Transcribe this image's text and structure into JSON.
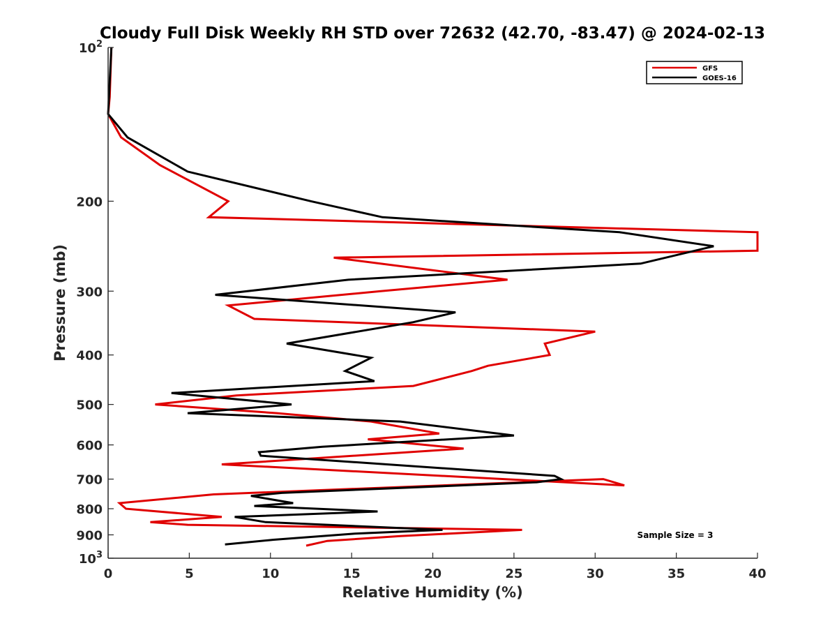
{
  "chart_data": {
    "type": "line",
    "title": "Cloudy Full Disk Weekly RH STD over 72632 (42.70, -83.47) @ 2024-02-13",
    "xlabel": "Relative Humidity (%)",
    "ylabel": "Pressure (mb)",
    "xlim": [
      0,
      40
    ],
    "ylim": [
      100,
      1000
    ],
    "y_scale": "log",
    "y_reversed": true,
    "grid": false,
    "legend_position": "top-right",
    "x_ticks": [
      0,
      5,
      10,
      15,
      20,
      25,
      30,
      35,
      40
    ],
    "y_ticks": [
      {
        "value": 100,
        "base": "10",
        "exp": "2"
      },
      {
        "value": 200,
        "label": "200"
      },
      {
        "value": 300,
        "label": "300"
      },
      {
        "value": 400,
        "label": "400"
      },
      {
        "value": 500,
        "label": "500"
      },
      {
        "value": 600,
        "label": "600"
      },
      {
        "value": 700,
        "label": "700"
      },
      {
        "value": 800,
        "label": "800"
      },
      {
        "value": 900,
        "label": "900"
      },
      {
        "value": 1000,
        "base": "10",
        "exp": "3"
      }
    ],
    "annotation": "Sample Size = 3",
    "series": [
      {
        "name": "GFS",
        "color": "#e00000",
        "points": [
          [
            0.2,
            100
          ],
          [
            0.1,
            125
          ],
          [
            0.0,
            135
          ],
          [
            0.8,
            150
          ],
          [
            3.2,
            170
          ],
          [
            7.4,
            200
          ],
          [
            6.2,
            215
          ],
          [
            40.5,
            230
          ],
          [
            40.5,
            250
          ],
          [
            13.9,
            258
          ],
          [
            24.6,
            285
          ],
          [
            16.8,
            300
          ],
          [
            7.4,
            320
          ],
          [
            9.0,
            340
          ],
          [
            30.0,
            360
          ],
          [
            26.9,
            380
          ],
          [
            27.2,
            400
          ],
          [
            23.4,
            420
          ],
          [
            22.4,
            430
          ],
          [
            18.8,
            460
          ],
          [
            7.9,
            480
          ],
          [
            2.9,
            500
          ],
          [
            10.4,
            520
          ],
          [
            16.2,
            540
          ],
          [
            20.4,
            570
          ],
          [
            16.0,
            585
          ],
          [
            21.9,
            610
          ],
          [
            7.0,
            655
          ],
          [
            31.8,
            720
          ],
          [
            30.5,
            700
          ],
          [
            6.5,
            750
          ],
          [
            0.7,
            780
          ],
          [
            1.1,
            800
          ],
          [
            7.0,
            830
          ],
          [
            2.6,
            850
          ],
          [
            4.9,
            860
          ],
          [
            25.5,
            880
          ],
          [
            18.0,
            905
          ],
          [
            13.5,
            925
          ],
          [
            12.2,
            945
          ]
        ]
      },
      {
        "name": "GOES-16",
        "color": "#000000",
        "points": [
          [
            0.2,
            100
          ],
          [
            0.0,
            135
          ],
          [
            1.2,
            150
          ],
          [
            4.9,
            175
          ],
          [
            12.5,
            200
          ],
          [
            16.9,
            215
          ],
          [
            31.5,
            230
          ],
          [
            37.3,
            245
          ],
          [
            32.8,
            265
          ],
          [
            14.8,
            285
          ],
          [
            6.6,
            305
          ],
          [
            21.4,
            330
          ],
          [
            18.8,
            345
          ],
          [
            11.0,
            380
          ],
          [
            16.2,
            405
          ],
          [
            14.6,
            430
          ],
          [
            16.4,
            450
          ],
          [
            3.9,
            475
          ],
          [
            11.3,
            500
          ],
          [
            4.9,
            520
          ],
          [
            18.0,
            540
          ],
          [
            25.0,
            575
          ],
          [
            13.2,
            605
          ],
          [
            9.3,
            620
          ],
          [
            9.4,
            630
          ],
          [
            27.5,
            690
          ],
          [
            27.9,
            700
          ],
          [
            26.4,
            710
          ],
          [
            10.7,
            745
          ],
          [
            8.8,
            755
          ],
          [
            11.4,
            780
          ],
          [
            9.0,
            790
          ],
          [
            16.6,
            810
          ],
          [
            7.8,
            830
          ],
          [
            9.7,
            850
          ],
          [
            20.6,
            880
          ],
          [
            15.2,
            895
          ],
          [
            10.2,
            920
          ],
          [
            7.2,
            940
          ]
        ]
      }
    ]
  }
}
